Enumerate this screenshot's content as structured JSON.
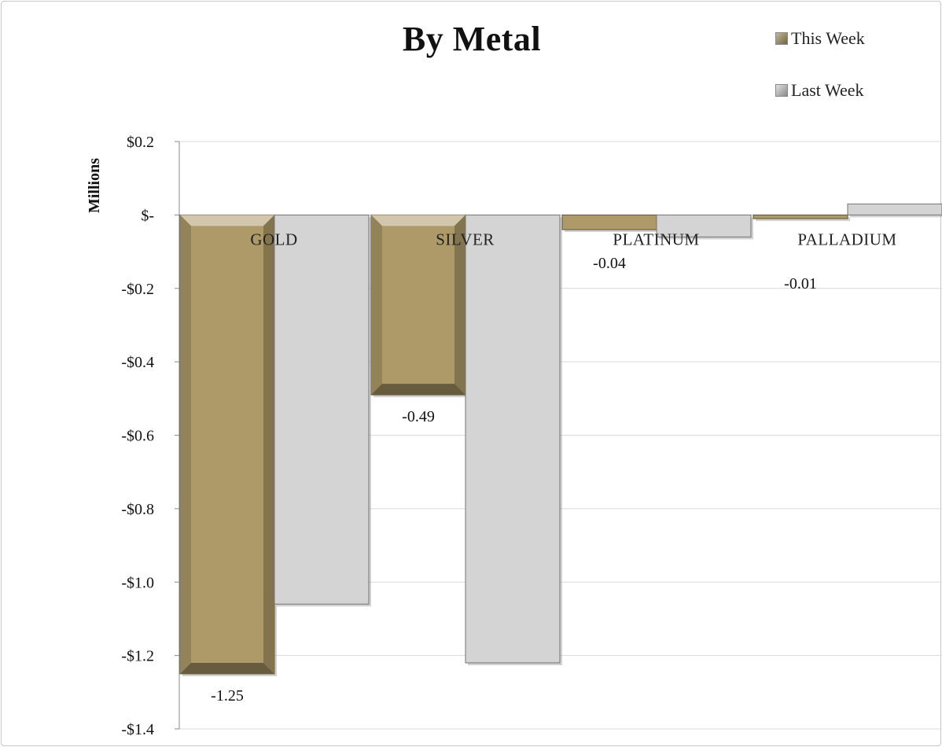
{
  "chart_data": {
    "type": "bar",
    "title": "By Metal",
    "ylabel": "Millions",
    "xlabel": "",
    "categories": [
      "GOLD",
      "SILVER",
      "PLATINUM",
      "PALLADIUM"
    ],
    "series": [
      {
        "name": "This Week",
        "values": [
          -1.25,
          -0.49,
          -0.04,
          -0.01
        ],
        "color": "#ad9a68",
        "data_labels": [
          "-1.25",
          "-0.49",
          "-0.04",
          "-0.01"
        ]
      },
      {
        "name": "Last Week",
        "values": [
          -1.06,
          -1.22,
          -0.06,
          0.03
        ],
        "color": "#d4d4d4"
      }
    ],
    "ylim": [
      -1.4,
      0.2
    ],
    "yticks": [
      0.2,
      0,
      -0.2,
      -0.4,
      -0.6,
      -0.8,
      -1.0,
      -1.2,
      -1.4
    ],
    "ytick_labels": [
      "$0.2",
      "$-",
      "-$0.2",
      "-$0.4",
      "-$0.6",
      "-$0.8",
      "-$1.0",
      "-$1.2",
      "-$1.4"
    ],
    "grid": true,
    "legend_position": "top-right",
    "bar_style": "beveled"
  }
}
